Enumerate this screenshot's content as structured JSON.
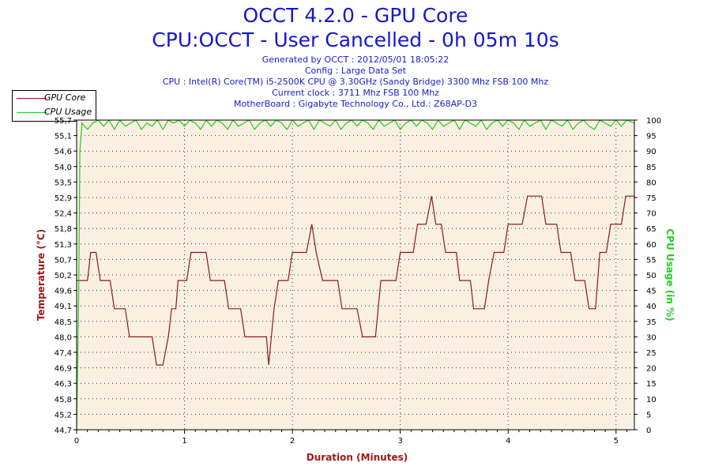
{
  "header": {
    "title": "OCCT 4.2.0 - GPU Core",
    "subtitle": "CPU:OCCT - User Cancelled - 0h 05m 10s",
    "generated": "Generated by OCCT : 2012/05/01 18:05:22",
    "config": "Config : Large Data Set",
    "cpu": "CPU : Intel(R) Core(TM) i5-2500K CPU @ 3.30GHz (Sandy Bridge) 3300 Mhz FSB 100 Mhz",
    "clock": "Current clock : 3711 Mhz FSB 100 Mhz",
    "motherboard": "MotherBoard : Gigabyte Technology Co., Ltd.: Z68AP-D3"
  },
  "legend": {
    "items": [
      {
        "label": "GPU Core",
        "color": "#8b1a1a"
      },
      {
        "label": "CPU Usage",
        "color": "#22cc22"
      }
    ]
  },
  "colors": {
    "plot_background": "#faf0e2",
    "temperature": "#8b1a1a",
    "cpu_usage": "#22cc22",
    "title": "#1616d0",
    "axis_label_left": "#a01818",
    "axis_label_right": "#22cc22"
  },
  "chart_data": {
    "type": "line",
    "xlabel": "Duration (Minutes)",
    "ylabel": "Temperature (°C)",
    "y2label": "CPU Usage (in %)",
    "xlim": [
      0,
      5.17
    ],
    "ylim": [
      44.7,
      55.7
    ],
    "y2lim": [
      0,
      100
    ],
    "grid": true,
    "legend_position": "top-left",
    "x_ticks": [
      "0",
      "1",
      "2",
      "3",
      "4",
      "5"
    ],
    "y_ticks": [
      "44,7",
      "45,2",
      "45,8",
      "46,3",
      "46,9",
      "47,4",
      "48,0",
      "48,5",
      "49,1",
      "49,6",
      "50,2",
      "50,7",
      "51,3",
      "51,8",
      "52,4",
      "52,9",
      "53,5",
      "54,0",
      "54,6",
      "55,1",
      "55,7"
    ],
    "y_tick_values": [
      44.7,
      45.25,
      45.8,
      46.35,
      46.9,
      47.45,
      48.0,
      48.55,
      49.1,
      49.65,
      50.2,
      50.75,
      51.3,
      51.85,
      52.4,
      52.95,
      53.5,
      54.05,
      54.6,
      55.15,
      55.7
    ],
    "y2_ticks": [
      "0",
      "5",
      "10",
      "15",
      "20",
      "25",
      "30",
      "35",
      "40",
      "45",
      "50",
      "55",
      "60",
      "65",
      "70",
      "75",
      "80",
      "85",
      "90",
      "95",
      "100"
    ],
    "series": [
      {
        "name": "GPU Core",
        "axis": "left",
        "points": [
          [
            0,
            50.0
          ],
          [
            0.1,
            50.0
          ],
          [
            0.13,
            51.0
          ],
          [
            0.18,
            51.0
          ],
          [
            0.22,
            50.0
          ],
          [
            0.31,
            50.0
          ],
          [
            0.35,
            49.0
          ],
          [
            0.45,
            49.0
          ],
          [
            0.49,
            48.0
          ],
          [
            0.7,
            48.0
          ],
          [
            0.74,
            47.0
          ],
          [
            0.8,
            47.0
          ],
          [
            0.85,
            48.0
          ],
          [
            0.88,
            49.0
          ],
          [
            0.92,
            49.0
          ],
          [
            0.94,
            50.0
          ],
          [
            1.02,
            50.0
          ],
          [
            1.06,
            51.0
          ],
          [
            1.2,
            51.0
          ],
          [
            1.24,
            50.0
          ],
          [
            1.37,
            50.0
          ],
          [
            1.41,
            49.0
          ],
          [
            1.52,
            49.0
          ],
          [
            1.56,
            48.0
          ],
          [
            1.76,
            48.0
          ],
          [
            1.78,
            47.0
          ],
          [
            1.83,
            49.0
          ],
          [
            1.87,
            50.0
          ],
          [
            1.96,
            50.0
          ],
          [
            2.0,
            51.0
          ],
          [
            2.13,
            51.0
          ],
          [
            2.18,
            52.0
          ],
          [
            2.22,
            51.0
          ],
          [
            2.28,
            50.0
          ],
          [
            2.42,
            50.0
          ],
          [
            2.46,
            49.0
          ],
          [
            2.6,
            49.0
          ],
          [
            2.65,
            48.0
          ],
          [
            2.77,
            48.0
          ],
          [
            2.82,
            50.0
          ],
          [
            2.96,
            50.0
          ],
          [
            3.0,
            51.0
          ],
          [
            3.12,
            51.0
          ],
          [
            3.16,
            52.0
          ],
          [
            3.24,
            52.0
          ],
          [
            3.29,
            53.0
          ],
          [
            3.33,
            52.0
          ],
          [
            3.38,
            52.0
          ],
          [
            3.42,
            51.0
          ],
          [
            3.52,
            51.0
          ],
          [
            3.55,
            50.0
          ],
          [
            3.65,
            50.0
          ],
          [
            3.68,
            49.0
          ],
          [
            3.78,
            49.0
          ],
          [
            3.82,
            50.0
          ],
          [
            3.87,
            51.0
          ],
          [
            3.96,
            51.0
          ],
          [
            4.0,
            52.0
          ],
          [
            4.13,
            52.0
          ],
          [
            4.18,
            53.0
          ],
          [
            4.31,
            53.0
          ],
          [
            4.35,
            52.0
          ],
          [
            4.45,
            52.0
          ],
          [
            4.49,
            51.0
          ],
          [
            4.58,
            51.0
          ],
          [
            4.62,
            50.0
          ],
          [
            4.71,
            50.0
          ],
          [
            4.75,
            49.0
          ],
          [
            4.81,
            49.0
          ],
          [
            4.85,
            51.0
          ],
          [
            4.91,
            51.0
          ],
          [
            4.95,
            52.0
          ],
          [
            5.05,
            52.0
          ],
          [
            5.09,
            53.0
          ],
          [
            5.17,
            53.0
          ]
        ]
      },
      {
        "name": "CPU Usage",
        "axis": "right",
        "points": [
          [
            0,
            0
          ],
          [
            0.02,
            45
          ],
          [
            0.03,
            90
          ],
          [
            0.05,
            99
          ],
          [
            0.1,
            97
          ],
          [
            0.15,
            99
          ],
          [
            0.2,
            100
          ],
          [
            0.25,
            98
          ],
          [
            0.3,
            100
          ],
          [
            0.35,
            97
          ],
          [
            0.4,
            100
          ],
          [
            0.45,
            98
          ],
          [
            0.5,
            99
          ],
          [
            0.55,
            100
          ],
          [
            0.6,
            97
          ],
          [
            0.65,
            99
          ],
          [
            0.7,
            98
          ],
          [
            0.75,
            100
          ],
          [
            0.8,
            97
          ],
          [
            0.85,
            100
          ],
          [
            0.9,
            99
          ],
          [
            0.95,
            100
          ],
          [
            1.0,
            98
          ],
          [
            1.05,
            100
          ],
          [
            1.1,
            99
          ],
          [
            1.15,
            97
          ],
          [
            1.2,
            100
          ],
          [
            1.25,
            98
          ],
          [
            1.3,
            100
          ],
          [
            1.35,
            99
          ],
          [
            1.4,
            97
          ],
          [
            1.45,
            100
          ],
          [
            1.5,
            98
          ],
          [
            1.55,
            99
          ],
          [
            1.6,
            100
          ],
          [
            1.65,
            97
          ],
          [
            1.7,
            99
          ],
          [
            1.75,
            100
          ],
          [
            1.8,
            98
          ],
          [
            1.85,
            100
          ],
          [
            1.9,
            99
          ],
          [
            1.95,
            97
          ],
          [
            2.0,
            100
          ],
          [
            2.05,
            98
          ],
          [
            2.1,
            99
          ],
          [
            2.15,
            100
          ],
          [
            2.2,
            97
          ],
          [
            2.25,
            100
          ],
          [
            2.3,
            99
          ],
          [
            2.35,
            98
          ],
          [
            2.4,
            100
          ],
          [
            2.45,
            97
          ],
          [
            2.5,
            99
          ],
          [
            2.55,
            100
          ],
          [
            2.6,
            98
          ],
          [
            2.65,
            100
          ],
          [
            2.7,
            99
          ],
          [
            2.75,
            97
          ],
          [
            2.8,
            100
          ],
          [
            2.85,
            98
          ],
          [
            2.9,
            99
          ],
          [
            2.95,
            100
          ],
          [
            3.0,
            97
          ],
          [
            3.05,
            99
          ],
          [
            3.1,
            100
          ],
          [
            3.15,
            98
          ],
          [
            3.2,
            100
          ],
          [
            3.25,
            99
          ],
          [
            3.3,
            97
          ],
          [
            3.35,
            100
          ],
          [
            3.4,
            98
          ],
          [
            3.45,
            99
          ],
          [
            3.5,
            100
          ],
          [
            3.55,
            97
          ],
          [
            3.6,
            100
          ],
          [
            3.65,
            99
          ],
          [
            3.7,
            98
          ],
          [
            3.75,
            100
          ],
          [
            3.8,
            97
          ],
          [
            3.85,
            99
          ],
          [
            3.9,
            100
          ],
          [
            3.95,
            98
          ],
          [
            4.0,
            100
          ],
          [
            4.05,
            99
          ],
          [
            4.1,
            97
          ],
          [
            4.15,
            100
          ],
          [
            4.2,
            98
          ],
          [
            4.25,
            99
          ],
          [
            4.3,
            100
          ],
          [
            4.35,
            97
          ],
          [
            4.4,
            100
          ],
          [
            4.45,
            99
          ],
          [
            4.5,
            98
          ],
          [
            4.55,
            100
          ],
          [
            4.6,
            97
          ],
          [
            4.65,
            99
          ],
          [
            4.7,
            100
          ],
          [
            4.75,
            98
          ],
          [
            4.8,
            97
          ],
          [
            4.85,
            100
          ],
          [
            4.9,
            99
          ],
          [
            4.95,
            98
          ],
          [
            5.0,
            100
          ],
          [
            5.05,
            98
          ],
          [
            5.1,
            100
          ],
          [
            5.17,
            99
          ]
        ]
      }
    ]
  }
}
